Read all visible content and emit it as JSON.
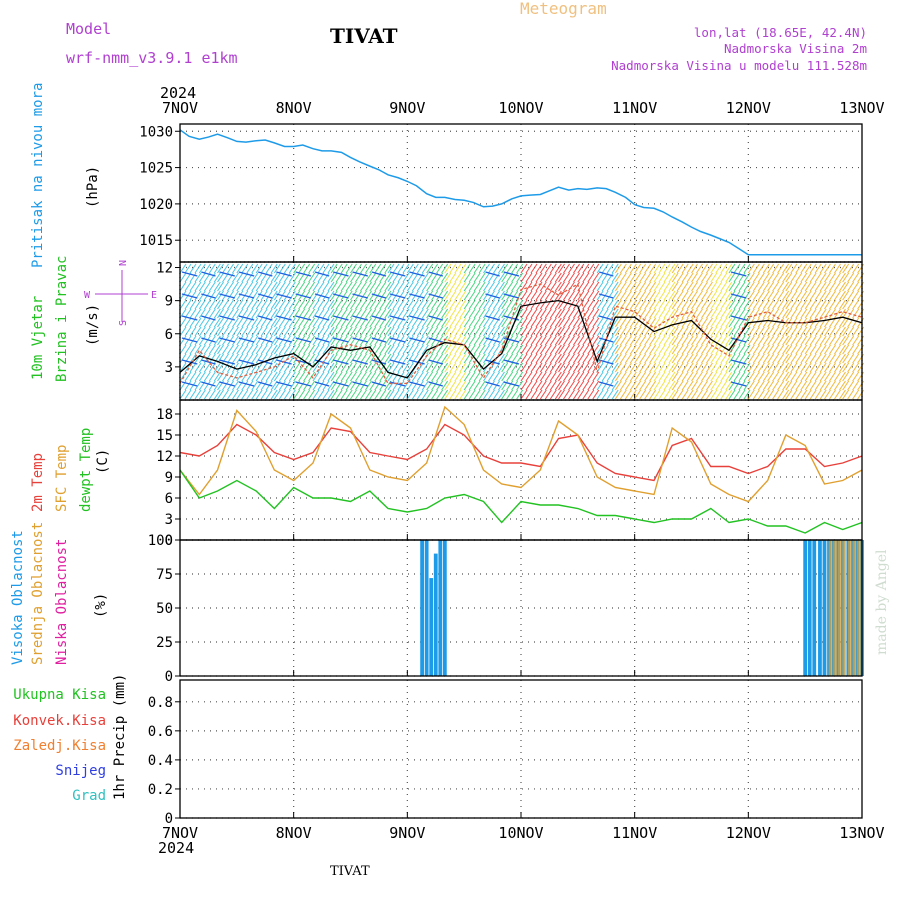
{
  "header": {
    "model_label": "Model",
    "model_name": "wrf-nmm_v3.9.1  e1km",
    "station": "TIVAT",
    "meteogram": "Meteogram",
    "lonlat": "lon,lat (18.65E, 42.4N)",
    "elevation": "Nadmorska Visina 2m",
    "model_elevation": "Nadmorska Visina u modelu 111.528m",
    "footer_station": "TIVAT",
    "watermark": "made by Angel"
  },
  "colors": {
    "pressure": "#1e9be8",
    "temp2m": "#e8403a",
    "sfc": "#e0a030",
    "dewpt": "#22c222",
    "cloud_high": "#1e9be8",
    "purple": "#b040d0",
    "title_orange": "#f0c080"
  },
  "time_axis": {
    "year": "2024",
    "days": [
      "7NOV",
      "8NOV",
      "9NOV",
      "10NOV",
      "11NOV",
      "12NOV",
      "13NOV"
    ]
  },
  "chart_data": [
    {
      "type": "line",
      "panel": "pressure",
      "ylabel": [
        "Pritisak na nivou mora",
        "(hPa)"
      ],
      "yticks": [
        "1015",
        "1020",
        "1025",
        "1030"
      ],
      "ylim": [
        1012,
        1031
      ],
      "x": [
        0,
        0.08,
        0.17,
        0.25,
        0.33,
        0.42,
        0.5,
        0.58,
        0.67,
        0.75,
        0.83,
        0.92,
        1.0,
        1.08,
        1.17,
        1.25,
        1.33,
        1.42,
        1.5,
        1.58,
        1.67,
        1.75,
        1.83,
        1.92,
        2.0,
        2.08,
        2.17,
        2.25,
        2.33,
        2.42,
        2.5,
        2.58,
        2.67,
        2.75,
        2.83,
        2.92,
        3.0,
        3.08,
        3.17,
        3.25,
        3.33,
        3.42,
        3.5,
        3.58,
        3.67,
        3.75,
        3.83,
        3.92,
        4.0,
        4.08,
        4.17,
        4.25,
        4.33,
        4.42,
        4.5,
        4.58,
        4.67,
        4.75,
        4.83,
        4.92,
        5.0,
        5.08,
        5.17,
        5.25,
        5.33,
        5.42,
        5.5,
        5.58,
        5.67,
        5.75,
        5.83,
        5.92,
        6.0
      ],
      "values": [
        1030.2,
        1029.3,
        1028.9,
        1029.2,
        1029.6,
        1029.1,
        1028.6,
        1028.5,
        1028.7,
        1028.8,
        1028.4,
        1027.9,
        1027.9,
        1028.1,
        1027.6,
        1027.3,
        1027.3,
        1027.1,
        1026.4,
        1025.8,
        1025.2,
        1024.7,
        1024.0,
        1023.6,
        1023.1,
        1022.5,
        1021.4,
        1020.9,
        1020.9,
        1020.6,
        1020.5,
        1020.2,
        1019.6,
        1019.7,
        1020.0,
        1020.7,
        1021.1,
        1021.2,
        1021.3,
        1021.8,
        1022.3,
        1021.9,
        1022.1,
        1022.0,
        1022.2,
        1022.1,
        1021.6,
        1020.9,
        1019.9,
        1019.5,
        1019.4,
        1018.9,
        1018.2,
        1017.5,
        1016.8,
        1016.2,
        1015.7,
        1015.2,
        1014.7,
        1013.8,
        1013.0,
        1013.0,
        1013.0,
        1013.0,
        1013.0,
        1013.0,
        1013.0,
        1013.0,
        1013.0,
        1013.0,
        1013.0,
        1013.0,
        1013.0
      ],
      "series_names": [
        "Pritisak na nivou mora"
      ]
    },
    {
      "type": "line",
      "panel": "wind",
      "ylabel": [
        "10m Vjetar",
        "Brzina i Pravac",
        "(m/s)"
      ],
      "compass": [
        "N",
        "W",
        "E",
        "S"
      ],
      "yticks": [
        "3",
        "6",
        "9",
        "12"
      ],
      "ylim": [
        0,
        12.5
      ],
      "x": [
        0,
        0.17,
        0.33,
        0.5,
        0.67,
        0.83,
        1.0,
        1.17,
        1.33,
        1.5,
        1.67,
        1.83,
        2.0,
        2.17,
        2.33,
        2.5,
        2.67,
        2.83,
        3.0,
        3.17,
        3.33,
        3.5,
        3.67,
        3.83,
        4.0,
        4.17,
        4.33,
        4.5,
        4.67,
        4.83,
        5.0,
        5.17,
        5.33,
        5.5,
        5.67,
        5.83,
        6.0
      ],
      "speed": [
        2.5,
        4.0,
        3.5,
        2.8,
        3.2,
        3.8,
        4.2,
        3.0,
        4.8,
        4.5,
        4.8,
        2.5,
        2.0,
        4.5,
        5.2,
        5.0,
        2.8,
        4.2,
        8.5,
        8.8,
        9.0,
        8.5,
        3.5,
        7.5,
        7.5,
        6.2,
        6.8,
        7.2,
        5.5,
        4.5,
        7.0,
        7.2,
        7.0,
        7.0,
        7.2,
        7.5,
        7.0
      ],
      "gust": [
        1.5,
        4.5,
        2.5,
        2.0,
        2.5,
        3.0,
        4.0,
        2.0,
        4.5,
        5.0,
        4.5,
        1.5,
        1.5,
        4.0,
        5.5,
        5.0,
        2.0,
        4.5,
        10.0,
        10.5,
        9.5,
        10.5,
        2.5,
        8.5,
        8.0,
        6.5,
        7.5,
        8.0,
        5.0,
        4.0,
        7.5,
        8.0,
        7.0,
        7.0,
        7.5,
        8.0,
        7.5
      ]
    },
    {
      "type": "line",
      "panel": "temperature",
      "ylabel": [
        "2m Temp",
        "SFC Temp",
        "dewpt Temp",
        "(C)"
      ],
      "yticks": [
        "0",
        "3",
        "6",
        "9",
        "12",
        "15",
        "18"
      ],
      "ylim": [
        0,
        20
      ],
      "x": [
        0,
        0.17,
        0.33,
        0.5,
        0.67,
        0.83,
        1.0,
        1.17,
        1.33,
        1.5,
        1.67,
        1.83,
        2.0,
        2.17,
        2.33,
        2.5,
        2.67,
        2.83,
        3.0,
        3.17,
        3.33,
        3.5,
        3.67,
        3.83,
        4.0,
        4.17,
        4.33,
        4.5,
        4.67,
        4.83,
        5.0,
        5.17,
        5.33,
        5.5,
        5.67,
        5.83,
        6.0
      ],
      "series": [
        {
          "name": "2m Temp",
          "values": [
            12.5,
            12,
            13.5,
            16.5,
            15,
            12.5,
            11.5,
            12.5,
            16,
            15.5,
            12.5,
            12,
            11.5,
            13,
            16.5,
            15,
            12,
            11,
            11,
            10.5,
            14.5,
            15,
            11,
            9.5,
            9,
            8.5,
            13.5,
            14.5,
            10.5,
            10.5,
            9.5,
            10.5,
            13,
            13,
            10.5,
            11,
            12
          ]
        },
        {
          "name": "SFC Temp",
          "values": [
            10,
            6.5,
            10,
            18.5,
            15.5,
            10,
            8.5,
            11,
            18,
            16,
            10,
            9,
            8.5,
            11,
            19,
            16.5,
            10,
            8,
            7.5,
            10,
            17,
            15,
            9,
            7.5,
            7,
            6.5,
            16,
            14,
            8,
            6.5,
            5.5,
            8.5,
            15,
            13.5,
            8,
            8.5,
            10
          ]
        },
        {
          "name": "dewpt Temp",
          "values": [
            10,
            6,
            7,
            8.5,
            7,
            4.5,
            7.5,
            6,
            6,
            5.5,
            7,
            4.5,
            4,
            4.5,
            6,
            6.5,
            5.5,
            2.5,
            5.5,
            5,
            5,
            4.5,
            3.5,
            3.5,
            3,
            2.5,
            3,
            3,
            4.5,
            2.5,
            3,
            2,
            2,
            1,
            2.5,
            1.5,
            2.5
          ]
        }
      ]
    },
    {
      "type": "bar",
      "panel": "clouds",
      "ylabel": [
        "Visoka Oblacnost",
        "Srednja Oblacnost",
        "Niska Oblacnost",
        "(%)"
      ],
      "yticks": [
        "0",
        "25",
        "50",
        "75",
        "100"
      ],
      "ylim": [
        0,
        100
      ],
      "series": [
        {
          "name": "Visoka Oblacnost",
          "x": [
            2.13,
            2.17,
            2.21,
            2.25,
            2.29,
            2.33,
            5.5,
            5.54,
            5.58,
            5.63,
            5.67,
            5.71,
            5.75,
            5.79,
            5.83,
            5.88,
            5.92,
            5.96,
            6.0
          ],
          "values": [
            100,
            100,
            72,
            90,
            100,
            100,
            100,
            100,
            100,
            100,
            100,
            100,
            100,
            100,
            100,
            100,
            100,
            100,
            100
          ]
        },
        {
          "name": "Srednja Oblacnost",
          "x": [
            5.71,
            5.75,
            5.79,
            5.83,
            5.88,
            5.92,
            5.96
          ],
          "values": [
            100,
            100,
            100,
            100,
            100,
            100,
            100
          ]
        },
        {
          "name": "Niska Oblacnost",
          "x": [],
          "values": []
        }
      ]
    },
    {
      "type": "bar",
      "panel": "precip",
      "ylabel": [
        "Ukupna Kisa",
        "Konvek.Kisa",
        "Zaledj.Kisa",
        "Snijeg",
        "Grad",
        "1hr Precip (mm)"
      ],
      "yticks": [
        "0",
        "0.2",
        "0.4",
        "0.6",
        "0.8"
      ],
      "ylim": [
        0,
        0.95
      ],
      "values": []
    }
  ]
}
